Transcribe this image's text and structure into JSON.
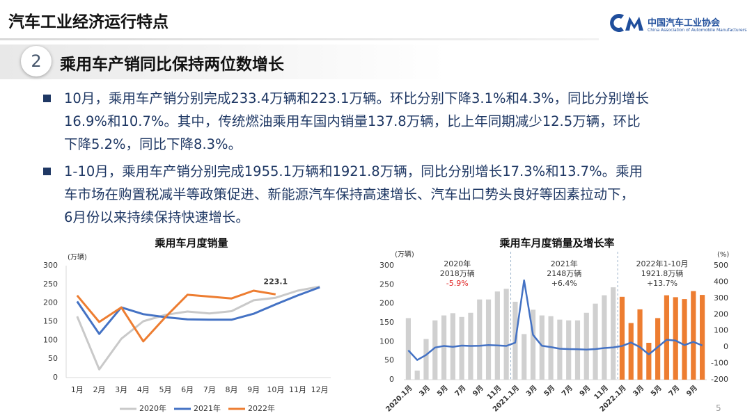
{
  "header": {
    "title": "汽车工业经济运行特点",
    "org_name": "中国汽车工业协会",
    "org_name_en": "China Association of Automobile Manufacturers"
  },
  "section": {
    "number": "2",
    "heading": "乘用车产销同比保持两位数增长"
  },
  "bullets": [
    {
      "lines": [
        "10月，乘用车产销分别完成233.4万辆和223.1万辆。环比分别下降3.1%和4.3%，同比分别增长",
        "16.9%和10.7%。其中，传统燃油乘用车国内销量137.8万辆，比上年同期减少12.5万辆，环比",
        "下降5.2%，同比下降8.3%。"
      ]
    },
    {
      "lines": [
        "1-10月，乘用车产销分别完成1955.1万辆和1921.8万辆，同比分别增长17.3%和13.7%。乘用",
        "车市场在购置税减半等政策促进、新能源汽车保持高速增长、汽车出口势头良好等因素拉动下，",
        "6月份以来持续保持快速增长。"
      ]
    }
  ],
  "page_number": "5",
  "chart_data": [
    {
      "type": "line",
      "title": "乘用车月度销量",
      "y_unit": "(万辆)",
      "categories": [
        "1月",
        "2月",
        "3月",
        "4月",
        "5月",
        "6月",
        "7月",
        "8月",
        "9月",
        "10月",
        "11月",
        "12月"
      ],
      "ylim": [
        0,
        300
      ],
      "yticks": [
        0,
        50,
        100,
        150,
        200,
        250,
        300
      ],
      "grid": false,
      "series": [
        {
          "name": "2020年",
          "color": "#c9c9c9",
          "values": [
            164,
            22,
            104,
            151,
            168,
            177,
            172,
            178,
            207,
            214,
            233,
            244
          ]
        },
        {
          "name": "2021年",
          "color": "#4472c4",
          "values": [
            204,
            117,
            188,
            170,
            162,
            156,
            155,
            155,
            171,
            196,
            220,
            242
          ]
        },
        {
          "name": "2022年",
          "color": "#ed7d31",
          "values": [
            220,
            149,
            188,
            97,
            162,
            222,
            217,
            212,
            233,
            223.1,
            null,
            null
          ],
          "value_labels": [
            null,
            null,
            null,
            null,
            null,
            null,
            null,
            null,
            null,
            "223.1",
            null,
            null
          ]
        }
      ]
    },
    {
      "type": "bar_line",
      "title": "乘用车月度销量及增长率",
      "y_unit": "(万辆)",
      "y2_unit": "(%)",
      "categories": [
        "2020.1月",
        null,
        "3月",
        null,
        "5月",
        null,
        "7月",
        null,
        "9月",
        null,
        "11月",
        null,
        "2021.1月",
        null,
        "3月",
        null,
        "5月",
        null,
        "7月",
        null,
        "9月",
        null,
        "11月",
        null,
        "2022.1月",
        null,
        "3月",
        null,
        "5月",
        null,
        "7月",
        null,
        "9月",
        null
      ],
      "ylim": [
        0,
        300
      ],
      "yticks": [
        0,
        50,
        100,
        150,
        200,
        250,
        300
      ],
      "y2lim": [
        -200,
        500
      ],
      "y2ticks": [
        -200,
        -100,
        0,
        100,
        200,
        300,
        400,
        500
      ],
      "grid": false,
      "series": [
        {
          "type": "bar",
          "values": [
            162,
            24,
            107,
            156,
            169,
            175,
            165,
            176,
            211,
            211,
            232,
            239,
            205,
            120,
            184,
            169,
            167,
            158,
            156,
            156,
            176,
            200,
            222,
            243,
            218,
            149,
            185,
            97,
            162,
            222,
            217,
            212,
            233,
            223
          ],
          "colors": [
            "#d0d0d0",
            "#d0d0d0",
            "#d0d0d0",
            "#d0d0d0",
            "#d0d0d0",
            "#d0d0d0",
            "#d0d0d0",
            "#d0d0d0",
            "#d0d0d0",
            "#d0d0d0",
            "#d0d0d0",
            "#d0d0d0",
            "#d0d0d0",
            "#d0d0d0",
            "#d0d0d0",
            "#d0d0d0",
            "#d0d0d0",
            "#d0d0d0",
            "#d0d0d0",
            "#d0d0d0",
            "#d0d0d0",
            "#d0d0d0",
            "#d0d0d0",
            "#d0d0d0",
            "#ed7d31",
            "#ed7d31",
            "#ed7d31",
            "#ed7d31",
            "#ed7d31",
            "#ed7d31",
            "#ed7d31",
            "#ed7d31",
            "#ed7d31",
            "#ed7d31"
          ]
        },
        {
          "type": "line",
          "axis": "y2",
          "color": "#4472c4",
          "values": [
            -20,
            -79,
            -48,
            -3,
            7,
            2,
            9,
            7,
            8,
            12,
            10,
            7,
            27,
            410,
            75,
            8,
            0,
            -10,
            -12,
            -13,
            -15,
            -12,
            -6,
            -2,
            7,
            28,
            0,
            -45,
            0,
            45,
            40,
            12,
            32,
            10
          ]
        }
      ],
      "annotations": [
        {
          "lines": [
            "2020年",
            "2018万辆",
            "-5.9%"
          ],
          "colors": [
            "#333333",
            "#333333",
            "#e02020"
          ]
        },
        {
          "lines": [
            "2021年",
            "2148万辆",
            "+6.4%"
          ],
          "colors": [
            "#333333",
            "#333333",
            "#333333"
          ]
        },
        {
          "lines": [
            "2022年1-10月",
            "1921.8万辆",
            "+13.7%"
          ],
          "colors": [
            "#333333",
            "#333333",
            "#333333"
          ]
        }
      ]
    }
  ]
}
